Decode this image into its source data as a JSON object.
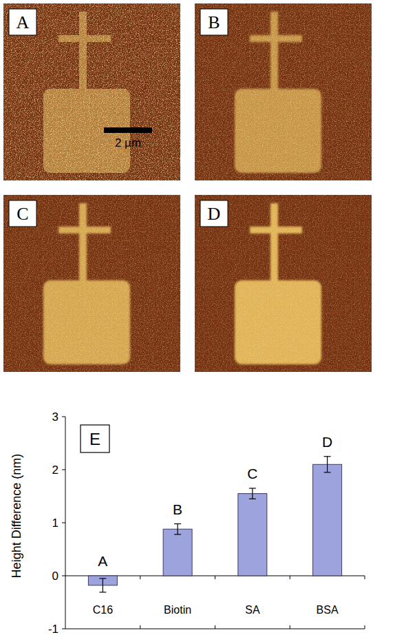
{
  "chart_data": {
    "type": "bar",
    "title": "E",
    "categories": [
      "C16",
      "Biotin",
      "SA",
      "BSA"
    ],
    "values": [
      -0.18,
      0.88,
      1.55,
      2.1
    ],
    "errors": [
      0.13,
      0.1,
      0.1,
      0.15
    ],
    "annotations": [
      "A",
      "B",
      "C",
      "D"
    ],
    "color": "#9da3dc",
    "y_label": "Height Difference (nm)",
    "ylim": [
      -1,
      3
    ],
    "yticks": [
      -1,
      0,
      1,
      2,
      3
    ],
    "grid": false
  },
  "images": {
    "panels": [
      "A",
      "B",
      "C",
      "D"
    ],
    "scale_bar": "2 µm"
  }
}
